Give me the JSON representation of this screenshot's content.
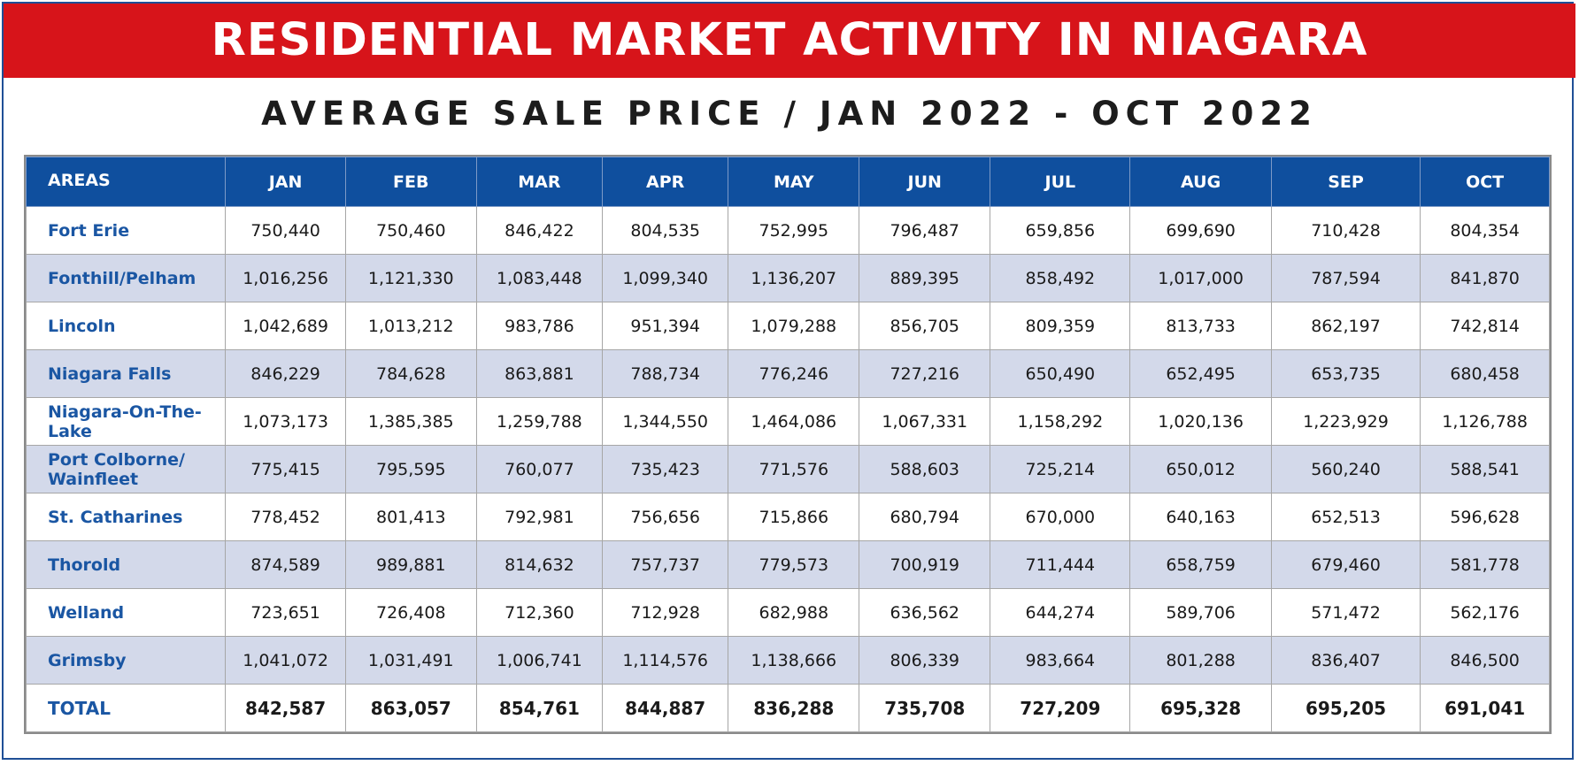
{
  "banner_title": "RESIDENTIAL MARKET ACTIVITY IN NIAGARA",
  "subtitle": "AVERAGE SALE PRICE / JAN 2022 - OCT 2022",
  "colors": {
    "banner": "#d7141a",
    "header": "#0f4f9e",
    "area_text": "#1a56a3",
    "alt_row": "#d3d9ea"
  },
  "table": {
    "columns": [
      "AREAS",
      "JAN",
      "FEB",
      "MAR",
      "APR",
      "MAY",
      "JUN",
      "JUL",
      "AUG",
      "SEP",
      "OCT"
    ],
    "rows": [
      {
        "area": "Fort Erie",
        "values": [
          "750,440",
          "750,460",
          "846,422",
          "804,535",
          "752,995",
          "796,487",
          "659,856",
          "699,690",
          "710,428",
          "804,354"
        ]
      },
      {
        "area": "Fonthill/Pelham",
        "values": [
          "1,016,256",
          "1,121,330",
          "1,083,448",
          "1,099,340",
          "1,136,207",
          "889,395",
          "858,492",
          "1,017,000",
          "787,594",
          "841,870"
        ]
      },
      {
        "area": "Lincoln",
        "values": [
          "1,042,689",
          "1,013,212",
          "983,786",
          "951,394",
          "1,079,288",
          "856,705",
          "809,359",
          "813,733",
          "862,197",
          "742,814"
        ]
      },
      {
        "area": "Niagara Falls",
        "values": [
          "846,229",
          "784,628",
          "863,881",
          "788,734",
          "776,246",
          "727,216",
          "650,490",
          "652,495",
          "653,735",
          "680,458"
        ]
      },
      {
        "area": "Niagara-On-The-Lake",
        "values": [
          "1,073,173",
          "1,385,385",
          "1,259,788",
          "1,344,550",
          "1,464,086",
          "1,067,331",
          "1,158,292",
          "1,020,136",
          "1,223,929",
          "1,126,788"
        ]
      },
      {
        "area": "Port Colborne/ Wainfleet",
        "values": [
          "775,415",
          "795,595",
          "760,077",
          "735,423",
          "771,576",
          "588,603",
          "725,214",
          "650,012",
          "560,240",
          "588,541"
        ]
      },
      {
        "area": "St. Catharines",
        "values": [
          "778,452",
          "801,413",
          "792,981",
          "756,656",
          "715,866",
          "680,794",
          "670,000",
          "640,163",
          "652,513",
          "596,628"
        ]
      },
      {
        "area": "Thorold",
        "values": [
          "874,589",
          "989,881",
          "814,632",
          "757,737",
          "779,573",
          "700,919",
          "711,444",
          "658,759",
          "679,460",
          "581,778"
        ]
      },
      {
        "area": "Welland",
        "values": [
          "723,651",
          "726,408",
          "712,360",
          "712,928",
          "682,988",
          "636,562",
          "644,274",
          "589,706",
          "571,472",
          "562,176"
        ]
      },
      {
        "area": "Grimsby",
        "values": [
          "1,041,072",
          "1,031,491",
          "1,006,741",
          "1,114,576",
          "1,138,666",
          "806,339",
          "983,664",
          "801,288",
          "836,407",
          "846,500"
        ]
      }
    ],
    "total": {
      "area": "TOTAL",
      "values": [
        "842,587",
        "863,057",
        "854,761",
        "844,887",
        "836,288",
        "735,708",
        "727,209",
        "695,328",
        "695,205",
        "691,041"
      ]
    }
  }
}
